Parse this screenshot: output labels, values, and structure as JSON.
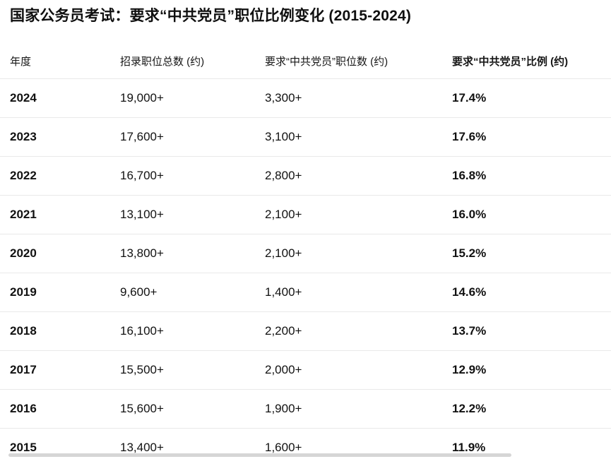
{
  "title": "国家公务员考试：要求“中共党员”职位比例变化 (2015-2024)",
  "table": {
    "columns": [
      {
        "label": "年度"
      },
      {
        "label": "招录职位总数 (约)"
      },
      {
        "label": "要求“中共党员”职位数 (约)"
      },
      {
        "label": "要求“中共党员”比例 (约)"
      }
    ],
    "rows": [
      {
        "year": "2024",
        "total": "19,000+",
        "party": "3,300+",
        "ratio": "17.4%"
      },
      {
        "year": "2023",
        "total": "17,600+",
        "party": "3,100+",
        "ratio": "17.6%"
      },
      {
        "year": "2022",
        "total": "16,700+",
        "party": "2,800+",
        "ratio": "16.8%"
      },
      {
        "year": "2021",
        "total": "13,100+",
        "party": "2,100+",
        "ratio": "16.0%"
      },
      {
        "year": "2020",
        "total": "13,800+",
        "party": "2,100+",
        "ratio": "15.2%"
      },
      {
        "year": "2019",
        "total": "9,600+",
        "party": "1,400+",
        "ratio": "14.6%"
      },
      {
        "year": "2018",
        "total": "16,100+",
        "party": "2,200+",
        "ratio": "13.7%"
      },
      {
        "year": "2017",
        "total": "15,500+",
        "party": "2,000+",
        "ratio": "12.9%"
      },
      {
        "year": "2016",
        "total": "15,600+",
        "party": "1,900+",
        "ratio": "12.2%"
      },
      {
        "year": "2015",
        "total": "13,400+",
        "party": "1,600+",
        "ratio": "11.9%"
      }
    ]
  },
  "colors": {
    "text": "#111111",
    "separator": "#e9e9e9",
    "scrollbar": "#d6d6d6",
    "background": "#ffffff"
  }
}
